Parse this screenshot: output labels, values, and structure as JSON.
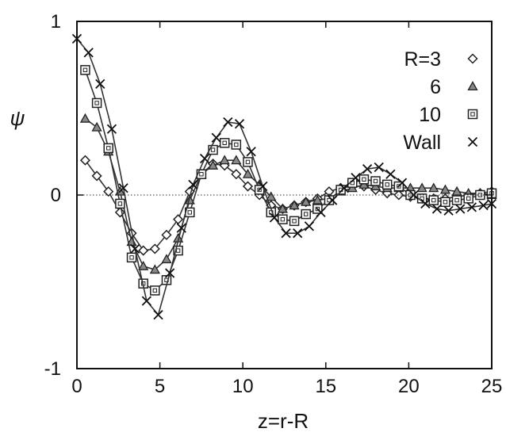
{
  "chart_data": {
    "type": "line",
    "xlabel": "z=r-R",
    "ylabel": "ψ",
    "xlim": [
      0,
      25
    ],
    "ylim": [
      -1,
      1
    ],
    "x_ticks": [
      "0",
      "5",
      "10",
      "15",
      "20",
      "25"
    ],
    "y_ticks": [
      "-1",
      "0",
      "1"
    ],
    "grid": false,
    "zero_line": true,
    "legend_position": "top-right",
    "series": [
      {
        "name": "R=3",
        "marker": "diamond",
        "x": [
          0.5,
          1.2,
          1.9,
          2.6,
          3.3,
          4.0,
          4.7,
          5.4,
          6.1,
          6.8,
          7.5,
          8.2,
          8.9,
          9.6,
          10.3,
          11.0,
          11.7,
          12.4,
          13.1,
          13.8,
          14.5,
          15.2,
          15.9,
          16.6,
          17.3,
          18.0,
          18.7,
          19.4,
          20.1,
          20.8,
          21.5,
          22.2,
          22.9,
          23.6,
          24.3,
          25.0
        ],
        "y": [
          0.2,
          0.11,
          0.02,
          -0.1,
          -0.22,
          -0.32,
          -0.31,
          -0.23,
          -0.14,
          0.02,
          0.12,
          0.18,
          0.17,
          0.12,
          0.05,
          0.0,
          -0.06,
          -0.08,
          -0.06,
          -0.04,
          -0.02,
          0.02,
          0.04,
          0.05,
          0.05,
          0.03,
          0.01,
          0.0,
          -0.01,
          -0.02,
          -0.02,
          -0.02,
          -0.01,
          0.0,
          0.01,
          0.02
        ]
      },
      {
        "name": "6",
        "marker": "triangle",
        "x": [
          0.5,
          1.2,
          1.9,
          2.6,
          3.3,
          4.0,
          4.7,
          5.4,
          6.1,
          6.8,
          7.5,
          8.2,
          8.9,
          9.6,
          10.3,
          11.0,
          11.7,
          12.4,
          13.1,
          13.8,
          14.5,
          15.2,
          15.9,
          16.6,
          17.3,
          18.0,
          18.7,
          19.4,
          20.1,
          20.8,
          21.5,
          22.2,
          22.9,
          23.6,
          24.3,
          25.0
        ],
        "y": [
          0.44,
          0.39,
          0.25,
          0.02,
          -0.27,
          -0.41,
          -0.43,
          -0.37,
          -0.25,
          -0.03,
          0.12,
          0.17,
          0.2,
          0.2,
          0.12,
          0.06,
          -0.01,
          -0.08,
          -0.06,
          -0.04,
          -0.03,
          -0.02,
          0.02,
          0.04,
          0.06,
          0.05,
          0.04,
          0.04,
          0.04,
          0.04,
          0.04,
          0.03,
          0.02,
          0.01,
          0.01,
          0.0
        ]
      },
      {
        "name": "10",
        "marker": "square",
        "x": [
          0.5,
          1.2,
          1.9,
          2.6,
          3.3,
          4.0,
          4.7,
          5.4,
          6.1,
          6.8,
          7.5,
          8.2,
          8.9,
          9.6,
          10.3,
          11.0,
          11.7,
          12.4,
          13.1,
          13.8,
          14.5,
          15.2,
          15.9,
          16.6,
          17.3,
          18.0,
          18.7,
          19.4,
          20.1,
          20.8,
          21.5,
          22.2,
          22.9,
          23.6,
          24.3,
          25.0
        ],
        "y": [
          0.72,
          0.53,
          0.27,
          -0.05,
          -0.36,
          -0.51,
          -0.55,
          -0.49,
          -0.32,
          -0.1,
          0.12,
          0.26,
          0.3,
          0.29,
          0.19,
          0.03,
          -0.1,
          -0.14,
          -0.15,
          -0.11,
          -0.08,
          -0.03,
          0.03,
          0.07,
          0.09,
          0.08,
          0.06,
          0.05,
          0.0,
          -0.02,
          -0.03,
          -0.04,
          -0.03,
          -0.02,
          0.0,
          0.01
        ]
      },
      {
        "name": "Wall",
        "marker": "cross",
        "x": [
          0.0,
          0.7,
          1.4,
          2.1,
          2.8,
          3.5,
          4.2,
          4.9,
          5.6,
          6.3,
          7.0,
          7.7,
          8.4,
          9.1,
          9.8,
          10.5,
          11.2,
          11.9,
          12.6,
          13.3,
          14.0,
          14.7,
          15.4,
          16.1,
          16.8,
          17.5,
          18.2,
          18.9,
          19.6,
          20.3,
          21.0,
          21.7,
          22.4,
          23.1,
          23.8,
          24.5,
          25.0
        ],
        "y": [
          0.9,
          0.82,
          0.64,
          0.38,
          0.04,
          -0.31,
          -0.61,
          -0.69,
          -0.45,
          -0.19,
          0.06,
          0.21,
          0.33,
          0.42,
          0.41,
          0.25,
          0.05,
          -0.13,
          -0.22,
          -0.22,
          -0.18,
          -0.1,
          -0.03,
          0.04,
          0.1,
          0.15,
          0.16,
          0.12,
          0.07,
          0.0,
          -0.05,
          -0.08,
          -0.09,
          -0.08,
          -0.07,
          -0.06,
          -0.05
        ]
      }
    ]
  }
}
